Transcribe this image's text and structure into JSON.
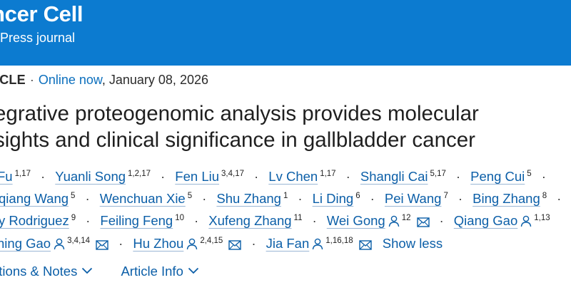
{
  "header": {
    "journal_name": "ncer Cell",
    "journal_sub": "Press journal",
    "background_color": "#0c7bd0"
  },
  "meta": {
    "article_type": "ICLE",
    "separator": "·",
    "online_label": "Online now",
    "date": ", January 08, 2026"
  },
  "title": {
    "line1": "egrative proteogenomic analysis provides molecular",
    "line2": "sights and clinical significance in gallbladder cancer"
  },
  "authors": {
    "row1": [
      {
        "name": "Fu",
        "aff": "1,17"
      },
      {
        "name": "Yuanli Song",
        "aff": "1,2,17"
      },
      {
        "name": "Fen Liu",
        "aff": "3,4,17"
      },
      {
        "name": "Lv Chen",
        "aff": "1,17"
      },
      {
        "name": "Shangli Cai",
        "aff": "5,17"
      },
      {
        "name": "Peng Cui",
        "aff": "5"
      }
    ],
    "row2": [
      {
        "name": "qiang Wang",
        "aff": "5"
      },
      {
        "name": "Wenchuan Xie",
        "aff": "5"
      },
      {
        "name": "Shu Zhang",
        "aff": "1"
      },
      {
        "name": "Li Ding",
        "aff": "6"
      },
      {
        "name": "Pei Wang",
        "aff": "7"
      },
      {
        "name": "Bing Zhang",
        "aff": "8"
      }
    ],
    "row3": [
      {
        "name": "y Rodriguez",
        "aff": "9"
      },
      {
        "name": "Feiling Feng",
        "aff": "10"
      },
      {
        "name": "Xufeng Zhang",
        "aff": "11"
      },
      {
        "name": "Wei Gong",
        "aff": "12"
      },
      {
        "name": "Qiang Gao",
        "aff": "1,13"
      }
    ],
    "row4": [
      {
        "name": "ning Gao",
        "aff": "3,4,14"
      },
      {
        "name": "Hu Zhou",
        "aff": "2,4,15"
      },
      {
        "name": "Jia Fan",
        "aff": "1,16,18"
      }
    ],
    "show_less": "Show less"
  },
  "links": {
    "notes": "ations & Notes",
    "article_info": "Article Info"
  },
  "icons": {
    "person": "person-icon",
    "mail": "envelope-icon",
    "chevron": "chevron-down-icon"
  },
  "colors": {
    "link": "#0c5fa8",
    "text": "#1f1f1f"
  }
}
